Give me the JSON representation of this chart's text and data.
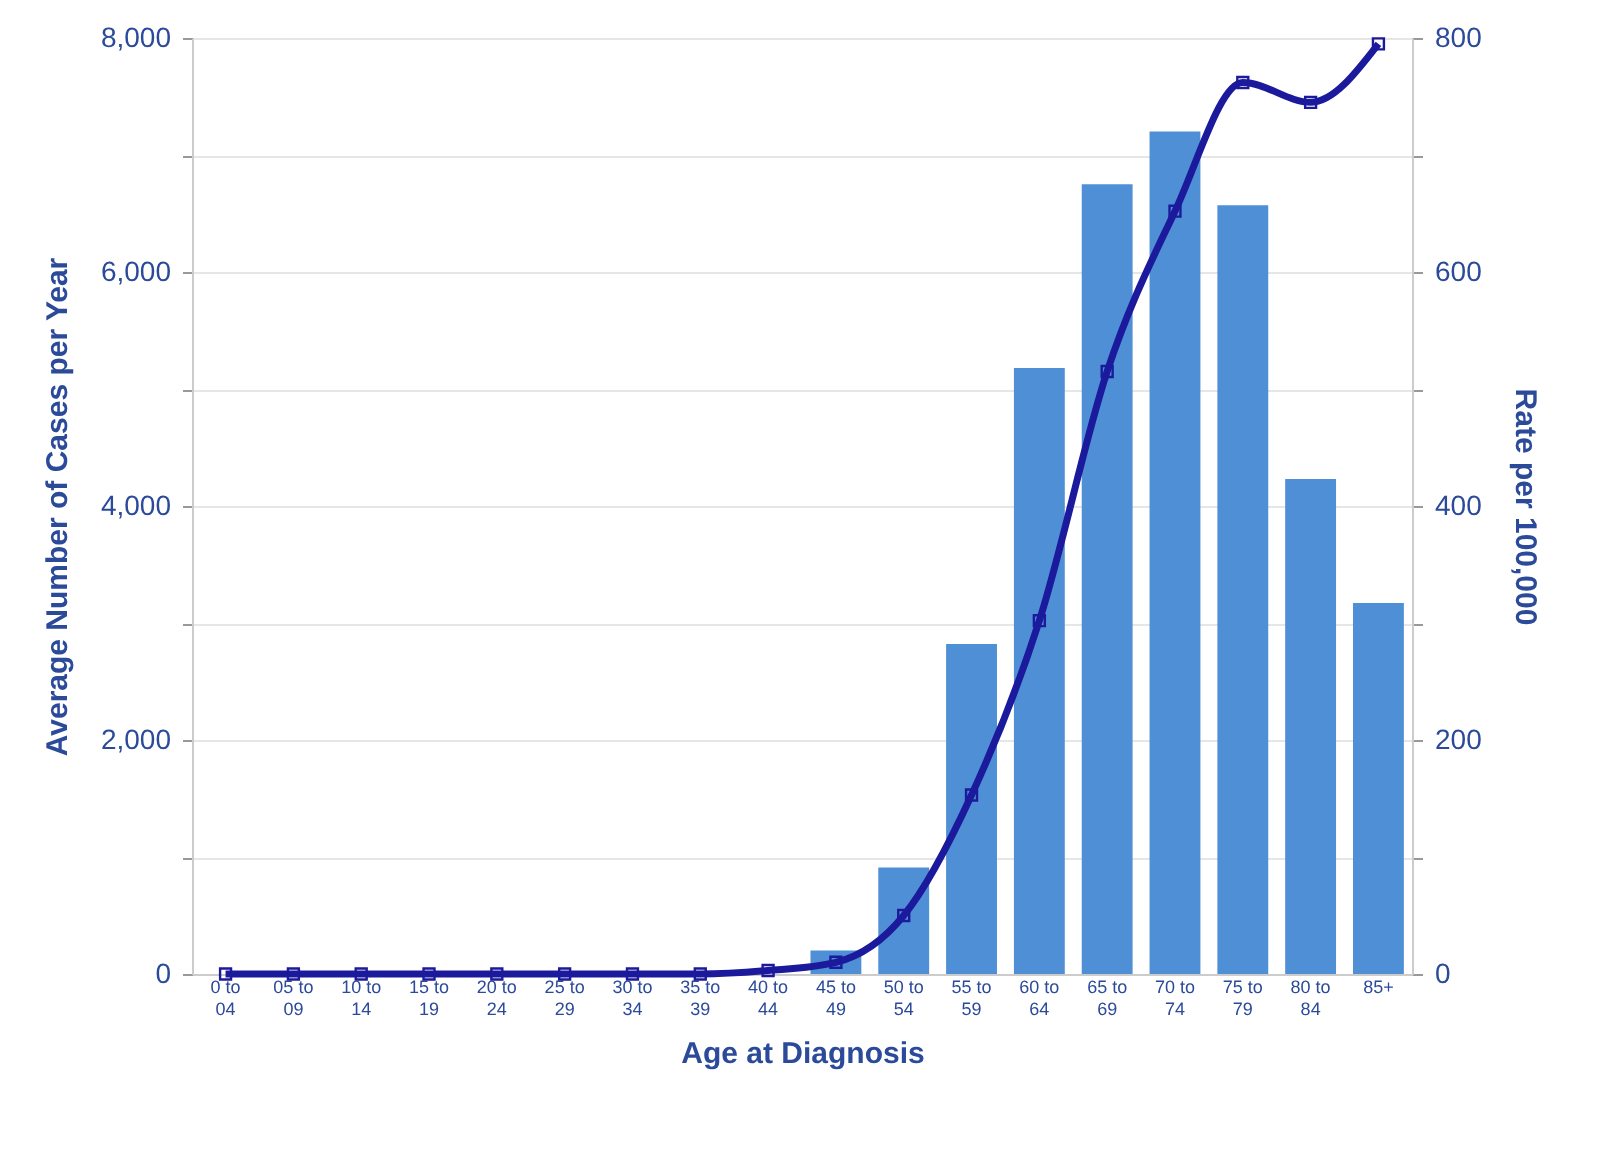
{
  "chart_data": {
    "type": "bar",
    "xlabel": "Age at Diagnosis",
    "ylabel": "Average Number of Cases per Year",
    "y2label": "Rate per 100,000",
    "categories": [
      "0 to 04",
      "05 to 09",
      "10 to 14",
      "15 to 19",
      "20 to 24",
      "25 to 29",
      "30 to 34",
      "35 to 39",
      "40 to 44",
      "45 to 49",
      "50 to 54",
      "55 to 59",
      "60 to 64",
      "65 to 69",
      "70 to 74",
      "75 to 79",
      "80 to 84",
      "85+"
    ],
    "series": [
      {
        "type": "bar",
        "color": "#4f8fd6",
        "values": [
          null,
          null,
          null,
          null,
          null,
          null,
          null,
          null,
          null,
          200,
          910,
          2820,
          5180,
          6750,
          7200,
          6570,
          4230,
          3170
        ]
      },
      {
        "type": "line",
        "axis": "y2",
        "color": "#1c1a9c",
        "marker": "square",
        "values": [
          0,
          0,
          0,
          0,
          0,
          0,
          0,
          0,
          3,
          10,
          50,
          153,
          302,
          515,
          652,
          762,
          745,
          795
        ]
      }
    ],
    "ylim": [
      0,
      8000
    ],
    "yticks": [
      0,
      {
        "value": 1000,
        "label": null
      },
      {
        "value": 2000,
        "label": "2,000"
      },
      {
        "value": 3000,
        "label": null
      },
      {
        "value": 4000,
        "label": "4,000"
      },
      {
        "value": 5000,
        "label": null
      },
      {
        "value": 6000,
        "label": "6,000"
      },
      {
        "value": 7000,
        "label": null
      },
      {
        "value": 8000,
        "label": "8,000"
      }
    ],
    "y2lim": [
      0,
      800
    ],
    "y2ticks": [
      0,
      {
        "value": 100,
        "label": null
      },
      200,
      {
        "value": 300,
        "label": null
      },
      400,
      {
        "value": 500,
        "label": null
      },
      600,
      {
        "value": 700,
        "label": null
      },
      800
    ],
    "grid": "y",
    "legend": false
  }
}
